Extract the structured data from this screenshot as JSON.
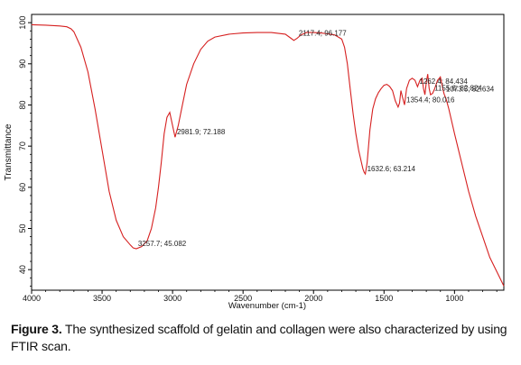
{
  "chart_data": {
    "type": "line",
    "xlabel": "Wavenumber (cm-1)",
    "ylabel": "Transmittance",
    "xlim": [
      4000,
      650
    ],
    "ylim": [
      35,
      102
    ],
    "x_reversed": true,
    "x_ticks": [
      4000,
      3500,
      3000,
      2500,
      2000,
      1500,
      1000
    ],
    "x_tick_labels": [
      "4000",
      "3500",
      "3000",
      "2500",
      "2000",
      "1500",
      "1000"
    ],
    "y_ticks": [
      40,
      50,
      60,
      70,
      80,
      90,
      100
    ],
    "y_tick_labels": [
      "40",
      "50",
      "60",
      "70",
      "80",
      "90",
      "100"
    ],
    "grid": false,
    "line_color": "#d62020",
    "series": [
      {
        "x": [
          4000,
          3900,
          3800,
          3750,
          3720,
          3700,
          3650,
          3600,
          3550,
          3500,
          3450,
          3400,
          3350,
          3300,
          3280,
          3257.7,
          3220,
          3180,
          3150,
          3120,
          3100,
          3080,
          3060,
          3040,
          3020,
          3000,
          2981.9,
          2960,
          2930,
          2900,
          2850,
          2800,
          2750,
          2700,
          2600,
          2500,
          2400,
          2300,
          2200,
          2160,
          2140,
          2117.4,
          2090,
          2050,
          2000,
          1950,
          1900,
          1850,
          1800,
          1780,
          1760,
          1740,
          1720,
          1700,
          1680,
          1660,
          1650,
          1640,
          1632.6,
          1620,
          1600,
          1580,
          1560,
          1540,
          1520,
          1500,
          1480,
          1460,
          1440,
          1420,
          1400,
          1390,
          1380,
          1370,
          1354.4,
          1340,
          1320,
          1300,
          1280,
          1262.4,
          1245,
          1230,
          1220,
          1210,
          1200,
          1190,
          1180,
          1170,
          1155.6,
          1140,
          1120,
          1100,
          1080,
          1073.5,
          1060,
          1040,
          1000,
          950,
          900,
          850,
          800,
          750,
          700,
          650
        ],
        "y": [
          99.5,
          99.4,
          99.2,
          99.0,
          98.5,
          97.8,
          94.0,
          88.0,
          79.0,
          69.0,
          59.0,
          52.0,
          48.0,
          46.0,
          45.3,
          45.082,
          45.6,
          47.0,
          50.0,
          55.0,
          60.0,
          66.0,
          73.0,
          77.0,
          78.2,
          75.0,
          72.188,
          75.0,
          80.0,
          85.0,
          90.0,
          93.5,
          95.5,
          96.5,
          97.2,
          97.5,
          97.6,
          97.6,
          97.2,
          96.2,
          95.7,
          96.177,
          97.0,
          97.6,
          97.6,
          97.5,
          97.3,
          97.0,
          96.0,
          94.0,
          90.0,
          84.0,
          78.0,
          73.0,
          69.0,
          66.0,
          64.5,
          63.6,
          63.214,
          66.0,
          74.0,
          79.0,
          81.5,
          83.0,
          84.0,
          84.8,
          85.0,
          84.5,
          83.5,
          81.0,
          79.5,
          80.5,
          83.5,
          82.0,
          80.016,
          84.0,
          86.0,
          86.5,
          86.0,
          84.434,
          86.0,
          86.5,
          84.0,
          82.5,
          85.5,
          87.5,
          84.0,
          82.5,
          82.824,
          84.0,
          86.0,
          86.8,
          83.5,
          82.634,
          81.5,
          79.0,
          73.0,
          66.0,
          59.0,
          53.0,
          48.0,
          43.0,
          39.5,
          36.0
        ]
      }
    ],
    "annotations": [
      {
        "text": "2117.4; 96.177",
        "x": 2117.4,
        "y": 96.177
      },
      {
        "text": "2981.9; 72.188",
        "x": 2981.9,
        "y": 72.188
      },
      {
        "text": "3257.7; 45.082",
        "x": 3257.7,
        "y": 45.082
      },
      {
        "text": "1632.6; 63.214",
        "x": 1632.6,
        "y": 63.214
      },
      {
        "text": "1354.4; 80.016",
        "x": 1354.4,
        "y": 80.016
      },
      {
        "text": "1262.4; 84.434",
        "x": 1262.4,
        "y": 84.434
      },
      {
        "text": "1155.6; 82.824",
        "x": 1155.6,
        "y": 82.824
      },
      {
        "text": "1073.5; 82.634",
        "x": 1073.5,
        "y": 82.634
      }
    ]
  },
  "caption": {
    "label": "Figure 3.",
    "text": " The synthesized scaffold of gelatin and collagen were also characterized by using FTIR scan."
  }
}
